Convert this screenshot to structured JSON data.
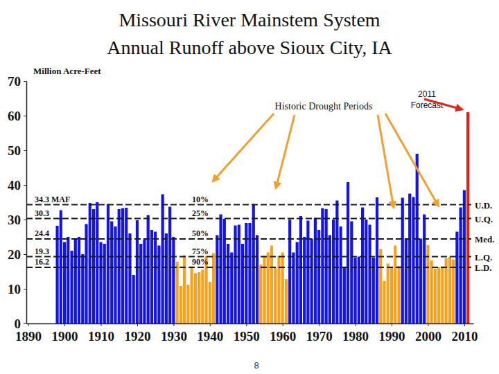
{
  "chart_data": {
    "type": "bar",
    "title": "Missouri River Mainstem System",
    "subtitle": "Annual Runoff above Sioux City, IA",
    "y_label": "Million Acre-Feet",
    "annotations": [
      "Historic Drought Periods",
      "2011 Forecast"
    ],
    "footer": "8",
    "x": [
      1898,
      1899,
      1900,
      1901,
      1902,
      1903,
      1904,
      1905,
      1906,
      1907,
      1908,
      1909,
      1910,
      1911,
      1912,
      1913,
      1914,
      1915,
      1916,
      1917,
      1918,
      1919,
      1920,
      1921,
      1922,
      1923,
      1924,
      1925,
      1926,
      1927,
      1928,
      1929,
      1930,
      1931,
      1932,
      1933,
      1934,
      1935,
      1936,
      1937,
      1938,
      1939,
      1940,
      1941,
      1942,
      1943,
      1944,
      1945,
      1946,
      1947,
      1948,
      1949,
      1950,
      1951,
      1952,
      1953,
      1954,
      1955,
      1956,
      1957,
      1958,
      1959,
      1960,
      1961,
      1962,
      1963,
      1964,
      1965,
      1966,
      1967,
      1968,
      1969,
      1970,
      1971,
      1972,
      1973,
      1974,
      1975,
      1976,
      1977,
      1978,
      1979,
      1980,
      1981,
      1982,
      1983,
      1984,
      1985,
      1986,
      1987,
      1988,
      1989,
      1990,
      1991,
      1992,
      1993,
      1994,
      1995,
      1996,
      1997,
      1998,
      1999,
      2000,
      2001,
      2002,
      2003,
      2004,
      2005,
      2006,
      2007,
      2008,
      2009,
      2010,
      2011
    ],
    "values": [
      28.2,
      32.7,
      23.5,
      25,
      21,
      24.5,
      25,
      20,
      28.7,
      34.8,
      33,
      35,
      23.5,
      23,
      34.5,
      29.5,
      28,
      33,
      33.3,
      33.4,
      26,
      14,
      29.8,
      23,
      24.2,
      31.3,
      27,
      26.5,
      22.5,
      37.3,
      26,
      33.7,
      25,
      17.8,
      10.8,
      19.7,
      11.2,
      16.5,
      14.5,
      14.8,
      15.5,
      19.5,
      12,
      20.3,
      25.5,
      31.5,
      30.2,
      23,
      20.5,
      28.3,
      28.5,
      23,
      29,
      29,
      34.5,
      25.5,
      17,
      19.5,
      20.5,
      22.5,
      16,
      19.5,
      20.5,
      12.8,
      30,
      20.5,
      23.5,
      31,
      25,
      29.7,
      24.5,
      30.5,
      27,
      33.3,
      33,
      25.5,
      30,
      35.5,
      28,
      16,
      40.8,
      29.5,
      19,
      19.3,
      33.5,
      30,
      28.5,
      19,
      36.4,
      21.5,
      12.3,
      17.3,
      16.3,
      22.5,
      16.6,
      36.3,
      24.5,
      37.5,
      36.5,
      49,
      24.5,
      31.5,
      22.6,
      18.2,
      15.8,
      16.2,
      16.5,
      18.8,
      19.2,
      18.5,
      26.5,
      33.5,
      38.5,
      61
    ],
    "colors": [
      "#1414e6",
      "#1414e6",
      "#1414e6",
      "#1414e6",
      "#1414e6",
      "#1414e6",
      "#1414e6",
      "#1414e6",
      "#1414e6",
      "#1414e6",
      "#1414e6",
      "#1414e6",
      "#1414e6",
      "#1414e6",
      "#1414e6",
      "#1414e6",
      "#1414e6",
      "#1414e6",
      "#1414e6",
      "#1414e6",
      "#1414e6",
      "#1414e6",
      "#1414e6",
      "#1414e6",
      "#1414e6",
      "#1414e6",
      "#1414e6",
      "#1414e6",
      "#1414e6",
      "#1414e6",
      "#1414e6",
      "#1414e6",
      "#1414e6",
      "#f5a21e",
      "#f5a21e",
      "#f5a21e",
      "#f5a21e",
      "#f5a21e",
      "#f5a21e",
      "#f5a21e",
      "#f5a21e",
      "#f5a21e",
      "#f5a21e",
      "#f5a21e",
      "#1414e6",
      "#1414e6",
      "#1414e6",
      "#1414e6",
      "#1414e6",
      "#1414e6",
      "#1414e6",
      "#1414e6",
      "#1414e6",
      "#1414e6",
      "#1414e6",
      "#1414e6",
      "#f5a21e",
      "#f5a21e",
      "#f5a21e",
      "#f5a21e",
      "#f5a21e",
      "#f5a21e",
      "#f5a21e",
      "#f5a21e",
      "#1414e6",
      "#1414e6",
      "#1414e6",
      "#1414e6",
      "#1414e6",
      "#1414e6",
      "#1414e6",
      "#1414e6",
      "#1414e6",
      "#1414e6",
      "#1414e6",
      "#1414e6",
      "#1414e6",
      "#1414e6",
      "#1414e6",
      "#1414e6",
      "#1414e6",
      "#1414e6",
      "#1414e6",
      "#1414e6",
      "#1414e6",
      "#1414e6",
      "#1414e6",
      "#1414e6",
      "#1414e6",
      "#f5a21e",
      "#f5a21e",
      "#f5a21e",
      "#f5a21e",
      "#f5a21e",
      "#f5a21e",
      "#1414e6",
      "#1414e6",
      "#1414e6",
      "#1414e6",
      "#1414e6",
      "#1414e6",
      "#1414e6",
      "#f5a21e",
      "#f5a21e",
      "#f5a21e",
      "#f5a21e",
      "#f5a21e",
      "#f5a21e",
      "#f5a21e",
      "#f5a21e",
      "#1414e6",
      "#1414e6",
      "#1414e6",
      "#ee1c10"
    ],
    "xlim": [
      1889.5,
      2012.5
    ],
    "xticks": [
      1890,
      1900,
      1910,
      1920,
      1930,
      1940,
      1950,
      1960,
      1970,
      1980,
      1990,
      2000,
      2010
    ],
    "ylim": [
      0,
      70
    ],
    "yticks": [
      0,
      10,
      20,
      30,
      40,
      50,
      60,
      70
    ],
    "grid": false,
    "reference_lines": [
      {
        "value": 34.3,
        "label": "34.3 MAF",
        "percentile": "10%",
        "code": "U.D."
      },
      {
        "value": 30.3,
        "label": "30.3",
        "percentile": "25%",
        "code": "U.Q."
      },
      {
        "value": 24.4,
        "label": "24.4",
        "percentile": "50%",
        "code": "Med."
      },
      {
        "value": 19.3,
        "label": "19.3",
        "percentile": "75%",
        "code": "L.Q."
      },
      {
        "value": 16.2,
        "label": "16.2",
        "percentile": "90%",
        "code": "L.D."
      }
    ]
  }
}
